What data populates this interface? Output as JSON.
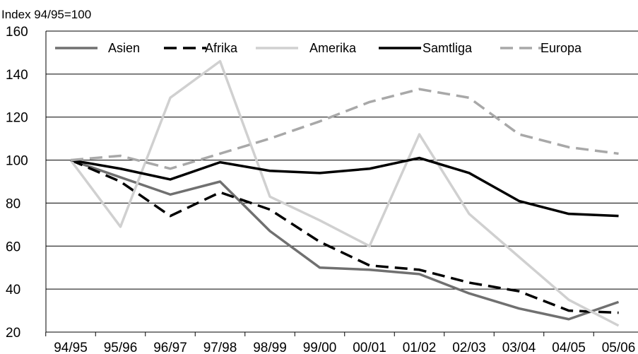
{
  "chart_data": {
    "type": "line",
    "ylabel": "Index 94/95=100",
    "ylim": [
      20,
      160
    ],
    "yticks": [
      20,
      40,
      60,
      80,
      100,
      120,
      140,
      160
    ],
    "grid": "horizontal",
    "legend_position": "top",
    "categories": [
      "94/95",
      "95/96",
      "96/97",
      "97/98",
      "98/99",
      "99/00",
      "00/01",
      "01/02",
      "02/03",
      "03/04",
      "04/05",
      "05/06"
    ],
    "series": [
      {
        "name": "Asien",
        "color": "#707070",
        "dash": "solid",
        "values": [
          100,
          92,
          84,
          90,
          67,
          50,
          49,
          47,
          38,
          31,
          26,
          34
        ]
      },
      {
        "name": "Afrika",
        "color": "#000000",
        "dash": "dashed",
        "values": [
          100,
          90,
          74,
          85,
          77,
          62,
          51,
          49,
          43,
          39,
          30,
          29
        ]
      },
      {
        "name": "Amerika",
        "color": "#d0d0d0",
        "dash": "solid",
        "values": [
          100,
          69,
          129,
          146,
          83,
          72,
          60,
          112,
          75,
          55,
          35,
          23
        ]
      },
      {
        "name": "Samtliga",
        "color": "#000000",
        "dash": "solid",
        "values": [
          100,
          96,
          91,
          99,
          95,
          94,
          96,
          101,
          94,
          81,
          75,
          74
        ]
      },
      {
        "name": "Europa",
        "color": "#a8a8a8",
        "dash": "dashed",
        "values": [
          100,
          102,
          96,
          103,
          110,
          118,
          127,
          133,
          129,
          112,
          106,
          103
        ]
      }
    ]
  }
}
